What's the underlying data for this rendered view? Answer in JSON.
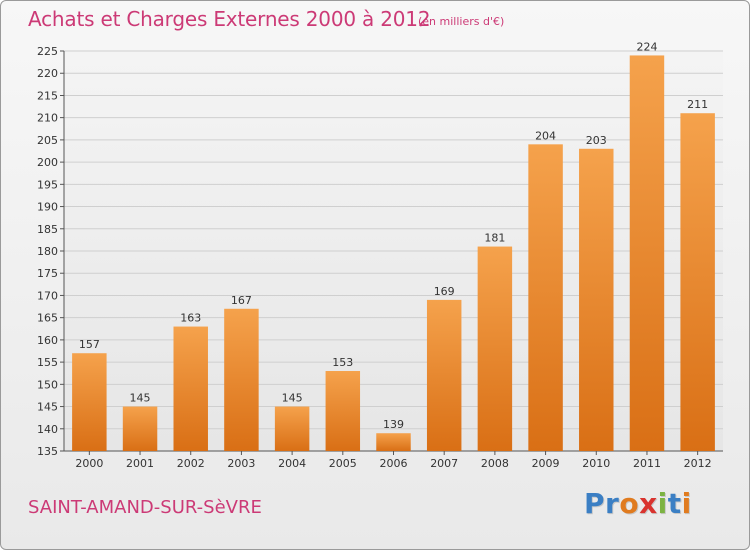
{
  "header": {
    "title": "Achats et Charges Externes 2000 à 2012",
    "subtitle": "(en milliers d'€)"
  },
  "footer": {
    "commune": "SAINT-AMAND-SUR-SèVRE",
    "logo_letters": [
      "P",
      "r",
      "o",
      "x",
      "i",
      "t",
      "i"
    ],
    "logo_colors": [
      "#3b7fc4",
      "#3b7fc4",
      "#e07b1f",
      "#d9332e",
      "#7cb342",
      "#3b7fc4",
      "#e07b1f"
    ]
  },
  "chart_data": {
    "type": "bar",
    "title": "Achats et Charges Externes 2000 à 2012",
    "subtitle": "(en milliers d'€)",
    "categories": [
      "2000",
      "2001",
      "2002",
      "2003",
      "2004",
      "2005",
      "2006",
      "2007",
      "2008",
      "2009",
      "2010",
      "2011",
      "2012"
    ],
    "values": [
      157,
      145,
      163,
      167,
      145,
      153,
      139,
      169,
      181,
      204,
      203,
      224,
      211
    ],
    "ylim": [
      135,
      225
    ],
    "yticks": [
      135,
      140,
      145,
      150,
      155,
      160,
      165,
      170,
      175,
      180,
      185,
      190,
      195,
      200,
      205,
      210,
      215,
      220,
      225
    ],
    "grid": true,
    "bar_color_top": "#f5a24c",
    "bar_color_bottom": "#d96f15"
  }
}
